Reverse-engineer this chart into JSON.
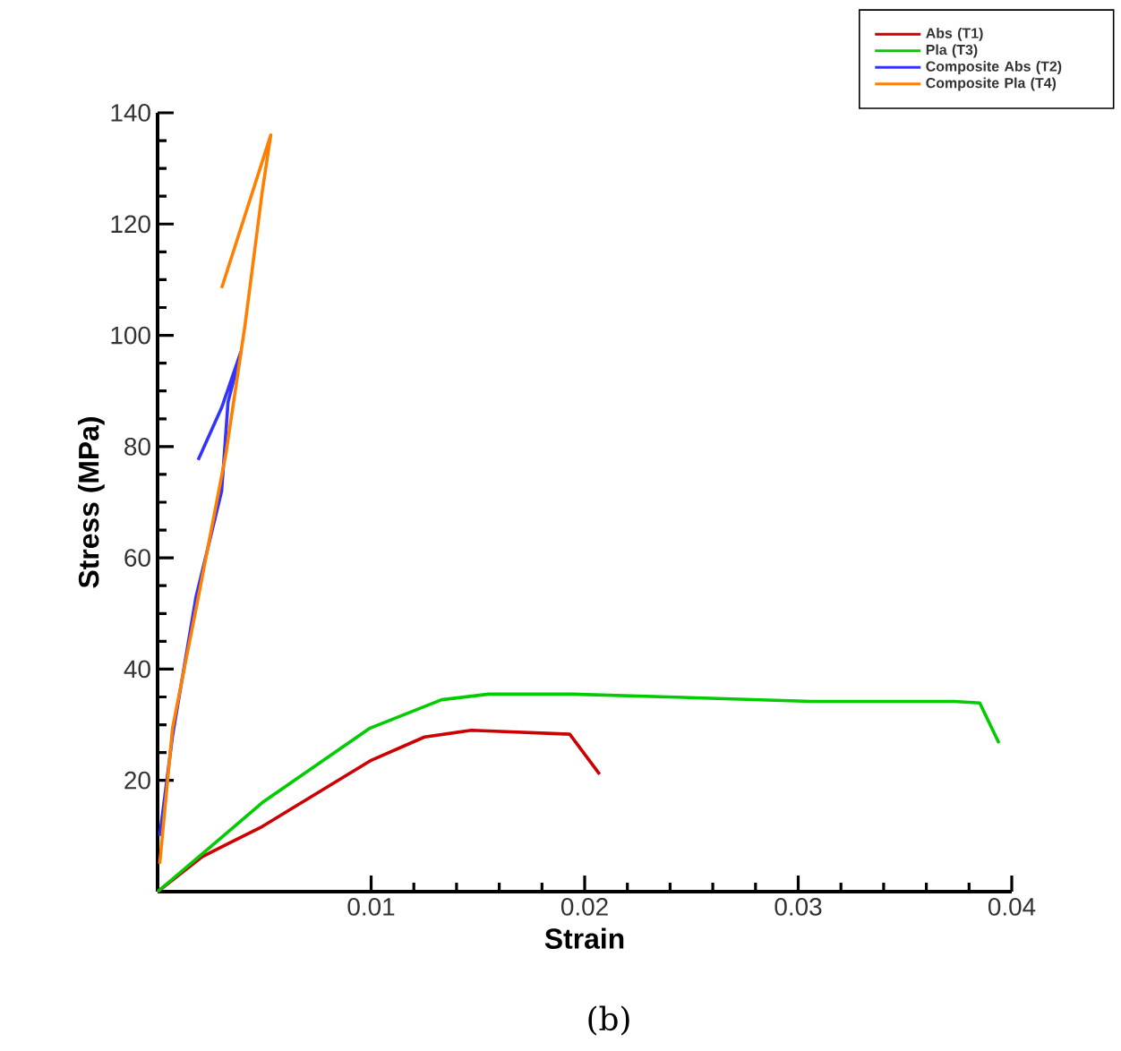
{
  "chart_data": {
    "type": "line",
    "xlabel": "Strain",
    "ylabel": "Stress (MPa)",
    "xlim": [
      0,
      0.04
    ],
    "ylim": [
      0,
      140
    ],
    "xticks": [
      0.01,
      0.02,
      0.03,
      0.04
    ],
    "yticks": [
      20,
      40,
      60,
      80,
      100,
      120,
      140
    ],
    "grid": false,
    "legend": "top right",
    "marker": "none",
    "line_style": "solid",
    "annotations": [
      "(b)"
    ],
    "series": [
      {
        "name": "Abs (T1)",
        "color": "#cc0000",
        "x": [
          0,
          0.0021,
          0.0049,
          0.00995,
          0.0125,
          0.0147,
          0.0193,
          0.0207
        ],
        "values": [
          0,
          6.3,
          11.7,
          23.5,
          27.8,
          29,
          28.3,
          21.1
        ]
      },
      {
        "name": "Pla (T3)",
        "color": "#00cc00",
        "x": [
          0,
          0.0021,
          0.0049,
          0.00995,
          0.0133,
          0.0155,
          0.0194,
          0.0239,
          0.0306,
          0.0373,
          0.0385,
          0.0394
        ],
        "values": [
          0,
          6.8,
          16,
          29.4,
          34.5,
          35.5,
          35.5,
          35,
          34.2,
          34.2,
          33.9,
          26.7
        ]
      },
      {
        "name": "Composite Abs (T2)",
        "color": "#3333ff",
        "x": [
          0.0001,
          0.0007,
          0.0018,
          0.003,
          0.0033,
          0.0039,
          0.003,
          0.0019
        ],
        "values": [
          10,
          28,
          53,
          72,
          88,
          97,
          87,
          77.6
        ]
      },
      {
        "name": "Composite Pla (T4)",
        "color": "#ff8000",
        "x": [
          0.0001,
          0.0007,
          0.0018,
          0.0032,
          0.0041,
          0.0049,
          0.0053,
          0.003
        ],
        "values": [
          5,
          29.4,
          50.8,
          78.7,
          102,
          125.8,
          136,
          108.5
        ]
      }
    ]
  }
}
